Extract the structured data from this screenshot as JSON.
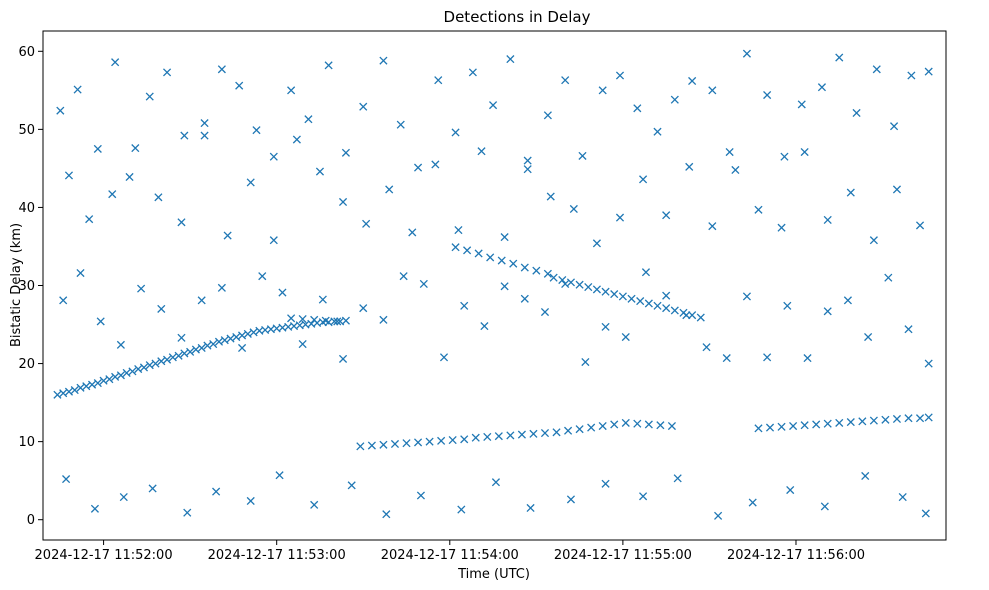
{
  "chart_data": {
    "type": "scatter",
    "title": "Detections in Delay",
    "xlabel": "Time (UTC)",
    "ylabel": "Bistatic Delay (km)",
    "x_ticks": [
      "2024-12-17 11:52:00",
      "2024-12-17 11:53:00",
      "2024-12-17 11:54:00",
      "2024-12-17 11:55:00",
      "2024-12-17 11:56:00"
    ],
    "y_ticks": [
      "0",
      "10",
      "20",
      "30",
      "40",
      "50",
      "60"
    ],
    "xlim": [
      "2024-12-17 11:51:39",
      "2024-12-17 11:56:52"
    ],
    "ylim": [
      -2.6,
      62.6
    ],
    "grid": false,
    "legend": "none",
    "marker": "x",
    "color": "#1f77b4",
    "series": [
      {
        "x": [
          "2024-12-17 11:51:44",
          "2024-12-17 11:51:46",
          "2024-12-17 11:51:48",
          "2024-12-17 11:51:50",
          "2024-12-17 11:51:52",
          "2024-12-17 11:51:54",
          "2024-12-17 11:51:56",
          "2024-12-17 11:51:58",
          "2024-12-17 11:52:00",
          "2024-12-17 11:52:02",
          "2024-12-17 11:52:04",
          "2024-12-17 11:52:06",
          "2024-12-17 11:52:08",
          "2024-12-17 11:52:10",
          "2024-12-17 11:52:12",
          "2024-12-17 11:52:14",
          "2024-12-17 11:52:16",
          "2024-12-17 11:52:18",
          "2024-12-17 11:52:20",
          "2024-12-17 11:52:22",
          "2024-12-17 11:52:24",
          "2024-12-17 11:52:26",
          "2024-12-17 11:52:28",
          "2024-12-17 11:52:30",
          "2024-12-17 11:52:32",
          "2024-12-17 11:52:34",
          "2024-12-17 11:52:36",
          "2024-12-17 11:52:38",
          "2024-12-17 11:52:40",
          "2024-12-17 11:52:42",
          "2024-12-17 11:52:44",
          "2024-12-17 11:52:46",
          "2024-12-17 11:52:48",
          "2024-12-17 11:52:50",
          "2024-12-17 11:52:52",
          "2024-12-17 11:52:54",
          "2024-12-17 11:52:56",
          "2024-12-17 11:52:58",
          "2024-12-17 11:53:00",
          "2024-12-17 11:53:02",
          "2024-12-17 11:53:04",
          "2024-12-17 11:53:06",
          "2024-12-17 11:53:08",
          "2024-12-17 11:53:10",
          "2024-12-17 11:53:12",
          "2024-12-17 11:53:14",
          "2024-12-17 11:53:16",
          "2024-12-17 11:53:18",
          "2024-12-17 11:53:20",
          "2024-12-17 11:53:22",
          "2024-12-17 11:53:24",
          "2024-12-17 11:53:05",
          "2024-12-17 11:53:09",
          "2024-12-17 11:53:13",
          "2024-12-17 11:53:17",
          "2024-12-17 11:53:21",
          "2024-12-17 11:53:29",
          "2024-12-17 11:53:33",
          "2024-12-17 11:53:37",
          "2024-12-17 11:53:41",
          "2024-12-17 11:53:45",
          "2024-12-17 11:53:49",
          "2024-12-17 11:53:53",
          "2024-12-17 11:53:57",
          "2024-12-17 11:54:01",
          "2024-12-17 11:54:05",
          "2024-12-17 11:54:09",
          "2024-12-17 11:54:13",
          "2024-12-17 11:54:17",
          "2024-12-17 11:54:21",
          "2024-12-17 11:54:25",
          "2024-12-17 11:54:29",
          "2024-12-17 11:54:33",
          "2024-12-17 11:54:37",
          "2024-12-17 11:54:41",
          "2024-12-17 11:54:45",
          "2024-12-17 11:54:49",
          "2024-12-17 11:54:53",
          "2024-12-17 11:54:57",
          "2024-12-17 11:55:01",
          "2024-12-17 11:55:05",
          "2024-12-17 11:55:09",
          "2024-12-17 11:55:13",
          "2024-12-17 11:55:17",
          "2024-12-17 11:54:02",
          "2024-12-17 11:54:06",
          "2024-12-17 11:54:10",
          "2024-12-17 11:54:14",
          "2024-12-17 11:54:18",
          "2024-12-17 11:54:22",
          "2024-12-17 11:54:26",
          "2024-12-17 11:54:30",
          "2024-12-17 11:54:34",
          "2024-12-17 11:54:36",
          "2024-12-17 11:54:39",
          "2024-12-17 11:54:42",
          "2024-12-17 11:54:45",
          "2024-12-17 11:54:48",
          "2024-12-17 11:54:51",
          "2024-12-17 11:54:54",
          "2024-12-17 11:54:57",
          "2024-12-17 11:55:00",
          "2024-12-17 11:55:03",
          "2024-12-17 11:55:06",
          "2024-12-17 11:55:09",
          "2024-12-17 11:55:12",
          "2024-12-17 11:55:15",
          "2024-12-17 11:55:18",
          "2024-12-17 11:55:21",
          "2024-12-17 11:55:24",
          "2024-12-17 11:55:27",
          "2024-12-17 11:55:47",
          "2024-12-17 11:55:51",
          "2024-12-17 11:55:55",
          "2024-12-17 11:55:59",
          "2024-12-17 11:56:03",
          "2024-12-17 11:56:07",
          "2024-12-17 11:56:11",
          "2024-12-17 11:56:15",
          "2024-12-17 11:56:19",
          "2024-12-17 11:56:23",
          "2024-12-17 11:56:27",
          "2024-12-17 11:56:31",
          "2024-12-17 11:56:35",
          "2024-12-17 11:56:39",
          "2024-12-17 11:56:43",
          "2024-12-17 11:56:46",
          "2024-12-17 11:51:45",
          "2024-12-17 11:51:51",
          "2024-12-17 11:51:58",
          "2024-12-17 11:52:04",
          "2024-12-17 11:52:09",
          "2024-12-17 11:52:16",
          "2024-12-17 11:52:22",
          "2024-12-17 11:52:28",
          "2024-12-17 11:52:35",
          "2024-12-17 11:52:41",
          "2024-12-17 11:52:47",
          "2024-12-17 11:52:53",
          "2024-12-17 11:52:59",
          "2024-12-17 11:53:05",
          "2024-12-17 11:53:11",
          "2024-12-17 11:53:18",
          "2024-12-17 11:53:24",
          "2024-12-17 11:53:30",
          "2024-12-17 11:53:37",
          "2024-12-17 11:53:43",
          "2024-12-17 11:53:49",
          "2024-12-17 11:53:56",
          "2024-12-17 11:54:02",
          "2024-12-17 11:54:08",
          "2024-12-17 11:54:15",
          "2024-12-17 11:54:21",
          "2024-12-17 11:54:27",
          "2024-12-17 11:54:34",
          "2024-12-17 11:54:40",
          "2024-12-17 11:54:46",
          "2024-12-17 11:54:53",
          "2024-12-17 11:54:59",
          "2024-12-17 11:55:05",
          "2024-12-17 11:55:12",
          "2024-12-17 11:55:18",
          "2024-12-17 11:55:24",
          "2024-12-17 11:55:31",
          "2024-12-17 11:55:37",
          "2024-12-17 11:55:43",
          "2024-12-17 11:55:50",
          "2024-12-17 11:55:56",
          "2024-12-17 11:56:02",
          "2024-12-17 11:56:09",
          "2024-12-17 11:56:15",
          "2024-12-17 11:56:21",
          "2024-12-17 11:56:28",
          "2024-12-17 11:56:34",
          "2024-12-17 11:56:40",
          "2024-12-17 11:56:46",
          "2024-12-17 11:51:48",
          "2024-12-17 11:51:55",
          "2024-12-17 11:52:03",
          "2024-12-17 11:52:11",
          "2024-12-17 11:52:19",
          "2024-12-17 11:52:27",
          "2024-12-17 11:52:35",
          "2024-12-17 11:52:43",
          "2024-12-17 11:52:51",
          "2024-12-17 11:52:59",
          "2024-12-17 11:53:07",
          "2024-12-17 11:53:15",
          "2024-12-17 11:53:23",
          "2024-12-17 11:53:31",
          "2024-12-17 11:53:39",
          "2024-12-17 11:53:47",
          "2024-12-17 11:53:55",
          "2024-12-17 11:54:03",
          "2024-12-17 11:54:11",
          "2024-12-17 11:54:19",
          "2024-12-17 11:54:27",
          "2024-12-17 11:54:35",
          "2024-12-17 11:54:43",
          "2024-12-17 11:54:51",
          "2024-12-17 11:54:59",
          "2024-12-17 11:55:07",
          "2024-12-17 11:55:15",
          "2024-12-17 11:55:23",
          "2024-12-17 11:55:31",
          "2024-12-17 11:55:39",
          "2024-12-17 11:55:47",
          "2024-12-17 11:55:55",
          "2024-12-17 11:56:03",
          "2024-12-17 11:56:11",
          "2024-12-17 11:56:19",
          "2024-12-17 11:56:27",
          "2024-12-17 11:56:35",
          "2024-12-17 11:56:43",
          "2024-12-17 11:51:46",
          "2024-12-17 11:51:52",
          "2024-12-17 11:51:59",
          "2024-12-17 11:52:06",
          "2024-12-17 11:52:13",
          "2024-12-17 11:52:20",
          "2024-12-17 11:52:27",
          "2024-12-17 11:52:34",
          "2024-12-17 11:52:41",
          "2024-12-17 11:52:48",
          "2024-12-17 11:52:55",
          "2024-12-17 11:53:02",
          "2024-12-17 11:53:09",
          "2024-12-17 11:53:16",
          "2024-12-17 11:53:23",
          "2024-12-17 11:53:30",
          "2024-12-17 11:53:37",
          "2024-12-17 11:53:44",
          "2024-12-17 11:53:51",
          "2024-12-17 11:53:58",
          "2024-12-17 11:54:05",
          "2024-12-17 11:54:12",
          "2024-12-17 11:54:19",
          "2024-12-17 11:54:26",
          "2024-12-17 11:54:33",
          "2024-12-17 11:54:40",
          "2024-12-17 11:54:47",
          "2024-12-17 11:54:54",
          "2024-12-17 11:55:01",
          "2024-12-17 11:55:08",
          "2024-12-17 11:55:15",
          "2024-12-17 11:55:22",
          "2024-12-17 11:55:29",
          "2024-12-17 11:55:36",
          "2024-12-17 11:55:43",
          "2024-12-17 11:55:50",
          "2024-12-17 11:55:57",
          "2024-12-17 11:56:04",
          "2024-12-17 11:56:11",
          "2024-12-17 11:56:18",
          "2024-12-17 11:56:25",
          "2024-12-17 11:56:32",
          "2024-12-17 11:56:39",
          "2024-12-17 11:56:46",
          "2024-12-17 11:51:47",
          "2024-12-17 11:51:57",
          "2024-12-17 11:52:07",
          "2024-12-17 11:52:17",
          "2024-12-17 11:52:29",
          "2024-12-17 11:52:39",
          "2024-12-17 11:52:51",
          "2024-12-17 11:53:01",
          "2024-12-17 11:53:13",
          "2024-12-17 11:53:26",
          "2024-12-17 11:53:38",
          "2024-12-17 11:53:50",
          "2024-12-17 11:54:04",
          "2024-12-17 11:54:16",
          "2024-12-17 11:54:28",
          "2024-12-17 11:54:42",
          "2024-12-17 11:54:54",
          "2024-12-17 11:55:07",
          "2024-12-17 11:55:19",
          "2024-12-17 11:55:33",
          "2024-12-17 11:55:45",
          "2024-12-17 11:55:58",
          "2024-12-17 11:56:10",
          "2024-12-17 11:56:24",
          "2024-12-17 11:56:37",
          "2024-12-17 11:56:45"
        ],
        "y": [
          16.0,
          16.2,
          16.4,
          16.6,
          16.9,
          17.1,
          17.3,
          17.5,
          17.8,
          18.0,
          18.3,
          18.5,
          18.8,
          19.0,
          19.3,
          19.5,
          19.8,
          20.0,
          20.3,
          20.5,
          20.8,
          21.0,
          21.3,
          21.5,
          21.8,
          22.0,
          22.3,
          22.5,
          22.8,
          23.0,
          23.2,
          23.4,
          23.6,
          23.8,
          24.0,
          24.2,
          24.3,
          24.4,
          24.5,
          24.6,
          24.7,
          24.8,
          24.9,
          25.0,
          25.1,
          25.2,
          25.3,
          25.3,
          25.4,
          25.4,
          25.5,
          25.8,
          25.7,
          25.6,
          25.5,
          25.4,
          9.4,
          9.5,
          9.6,
          9.7,
          9.8,
          9.9,
          10.0,
          10.1,
          10.2,
          10.3,
          10.5,
          10.6,
          10.7,
          10.8,
          10.9,
          11.0,
          11.1,
          11.2,
          11.4,
          11.6,
          11.8,
          12.0,
          12.2,
          12.4,
          12.3,
          12.2,
          12.1,
          12.0,
          34.9,
          34.5,
          34.1,
          33.6,
          33.2,
          32.8,
          32.3,
          31.9,
          31.5,
          31.0,
          30.7,
          30.4,
          30.1,
          29.8,
          29.5,
          29.2,
          28.9,
          28.6,
          28.3,
          28.0,
          27.7,
          27.4,
          27.1,
          26.8,
          26.5,
          26.2,
          25.9,
          11.7,
          11.8,
          11.9,
          12.0,
          12.1,
          12.2,
          12.3,
          12.4,
          12.5,
          12.6,
          12.7,
          12.8,
          12.9,
          13.0,
          13.0,
          13.1,
          52.4,
          55.1,
          47.5,
          58.6,
          43.9,
          54.2,
          57.3,
          49.2,
          50.8,
          57.7,
          55.6,
          49.9,
          46.5,
          55.0,
          51.3,
          58.2,
          47.0,
          52.9,
          58.8,
          50.6,
          45.1,
          56.3,
          49.6,
          57.3,
          53.1,
          59.0,
          46.0,
          51.8,
          56.3,
          46.6,
          55.0,
          56.9,
          52.7,
          49.7,
          53.8,
          56.2,
          55.0,
          47.1,
          59.7,
          54.4,
          46.5,
          53.2,
          55.4,
          59.2,
          52.1,
          57.7,
          50.4,
          56.9,
          57.4,
          44.1,
          38.5,
          41.7,
          47.6,
          41.3,
          38.1,
          49.2,
          36.4,
          43.2,
          35.8,
          48.7,
          44.6,
          40.7,
          37.9,
          42.3,
          36.8,
          45.5,
          37.1,
          47.2,
          36.2,
          44.9,
          41.4,
          39.8,
          35.4,
          38.7,
          43.6,
          39.0,
          45.2,
          37.6,
          44.8,
          39.7,
          37.4,
          47.1,
          38.4,
          41.9,
          35.8,
          42.3,
          37.7,
          28.1,
          31.6,
          25.4,
          22.4,
          29.6,
          27.0,
          23.3,
          28.1,
          29.7,
          22.0,
          31.2,
          29.1,
          22.5,
          28.2,
          20.6,
          27.1,
          25.6,
          31.2,
          30.2,
          20.8,
          27.4,
          24.8,
          29.9,
          28.3,
          26.6,
          30.2,
          20.2,
          24.7,
          23.4,
          31.7,
          28.7,
          26.2,
          22.1,
          20.7,
          28.6,
          20.8,
          27.4,
          20.7,
          26.7,
          28.1,
          23.4,
          31.0,
          24.4,
          20.0,
          5.2,
          1.4,
          2.9,
          4.0,
          0.9,
          3.6,
          2.4,
          5.7,
          1.9,
          4.4,
          0.7,
          3.1,
          1.3,
          4.8,
          1.5,
          2.6,
          4.6,
          3.0,
          5.3,
          0.5,
          2.2,
          3.8,
          1.7,
          5.6,
          2.9,
          0.8
        ]
      }
    ]
  }
}
